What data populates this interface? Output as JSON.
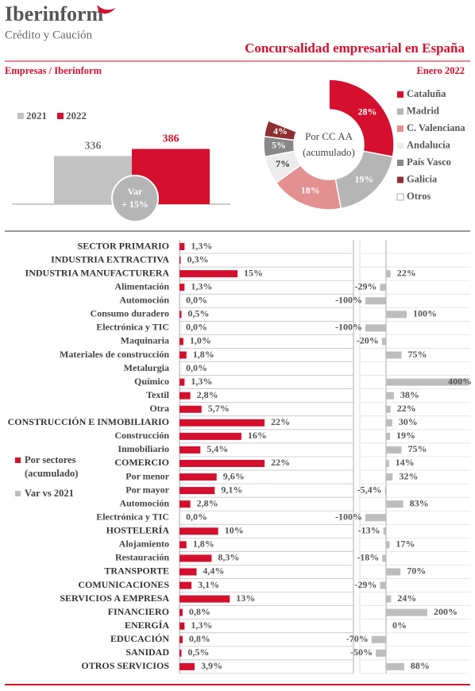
{
  "header": {
    "brand": "Iberinform",
    "brand_subtitle": "Crédito y Caución",
    "title": "Concursalidad empresarial en España",
    "section": "Empresas / Iberinform",
    "date": "Enero 2022"
  },
  "chart_data": [
    {
      "type": "column",
      "series": [
        {
          "name": "2021",
          "color": "#c2c2c2",
          "values": [
            336
          ]
        },
        {
          "name": "2022",
          "color": "#d50f2e",
          "values": [
            386
          ]
        }
      ],
      "annotation": [
        "Var",
        "+ 15%"
      ]
    },
    {
      "type": "pie",
      "center_label": [
        "Por CC AA",
        "(acumulado)"
      ],
      "categories": [
        "Cataluña",
        "Madrid",
        "C. Valenciana",
        "Andalucía",
        "País Vasco",
        "Galicia",
        "Otros"
      ],
      "values": [
        28,
        19,
        18,
        7,
        5,
        4,
        19
      ],
      "value_labels": [
        "28%",
        "19%",
        "18%",
        "7%",
        "5%",
        "4%",
        null
      ],
      "colors": [
        "#d50f2e",
        "#b5b5b5",
        "#e39090",
        "#ececec",
        "#888888",
        "#8e3030",
        "#ffffff"
      ]
    },
    {
      "type": "hbar",
      "categories": [
        "SECTOR PRIMARIO",
        "INDUSTRIA EXTRACTIVA",
        "INDUSTRIA MANUFACTURERA",
        "Alimentación",
        "Automoción",
        "Consumo duradero",
        "Electrónica y TIC",
        "Maquinaria",
        "Materiales de construcción",
        "Metalurgia",
        "Químico",
        "Textil",
        "Otra",
        "CONSTRUCCIÓN E INMOBILIARIO",
        "Construcción",
        "Inmobiliario",
        "COMERCIO",
        "Por menor",
        "Por mayor",
        "Automoción",
        "Electrónica y TIC",
        "HOSTELERÍA",
        "Alojamiento",
        "Restauración",
        "TRANSPORTE",
        "COMUNICACIONES",
        "SERVICIOS A EMPRESA",
        "FINANCIERO",
        "ENERGÍA",
        "EDUCACIÓN",
        "SANIDAD",
        "OTROS SERVICIOS"
      ],
      "series": [
        {
          "name": "Por sectores (acumulado)",
          "color": "#d50f2e",
          "values": [
            1.3,
            0.3,
            15,
            1.3,
            0.0,
            0.5,
            0.0,
            1.0,
            1.8,
            0.0,
            1.3,
            2.8,
            5.7,
            22,
            16,
            5.4,
            22,
            9.6,
            9.1,
            2.8,
            0.0,
            10,
            1.8,
            8.3,
            4.4,
            3.1,
            13,
            0.8,
            1.3,
            0.8,
            0.5,
            3.9
          ],
          "value_labels": [
            "1,3%",
            "0,3%",
            "15%",
            "1,3%",
            "0,0%",
            "0,5%",
            "0,0%",
            "1,0%",
            "1,8%",
            "0,0%",
            "1,3%",
            "2,8%",
            "5,7%",
            "22%",
            "16%",
            "5,4%",
            "22%",
            "9,6%",
            "9,1%",
            "2,8%",
            "0,0%",
            "10%",
            "1,8%",
            "8,3%",
            "4,4%",
            "3,1%",
            "13%",
            "0,8%",
            "1,3%",
            "0,8%",
            "0,5%",
            "3,9%"
          ]
        },
        {
          "name": "Var vs 2021",
          "color": "#bdbdbd",
          "values": [
            null,
            null,
            22,
            -29,
            -100,
            100,
            -100,
            -20,
            75,
            null,
            400,
            38,
            22,
            30,
            19,
            75,
            14,
            32,
            -5.4,
            83,
            -100,
            -13,
            17,
            -18,
            70,
            -29,
            24,
            200,
            0,
            -70,
            -50,
            88
          ],
          "value_labels": [
            null,
            null,
            "22%",
            "-29%",
            "-100%",
            "100%",
            "-100%",
            "-20%",
            "75%",
            null,
            "400%",
            "38%",
            "22%",
            "30%",
            "19%",
            "75%",
            "14%",
            "32%",
            "-5,4%",
            "83%",
            "-100%",
            "-13%",
            "17%",
            "-18%",
            "70%",
            "-29%",
            "24%",
            "200%",
            "0%",
            "-70%",
            "-50%",
            "88%"
          ]
        }
      ]
    }
  ]
}
